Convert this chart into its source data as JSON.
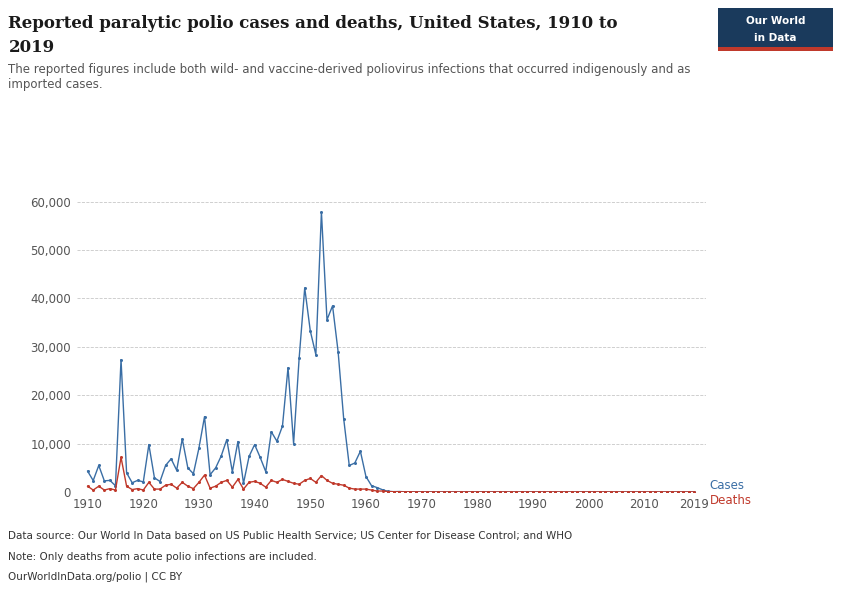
{
  "title_line1": "Reported paralytic polio cases and deaths, United States, 1910 to",
  "title_line2": "2019",
  "subtitle": "The reported figures include both wild- and vaccine-derived poliovirus infections that occurred indigenously and as\nimported cases.",
  "datasource": "Data source: Our World In Data based on US Public Health Service; US Center for Disease Control; and WHO",
  "note": "Note: Only deaths from acute polio infections are included.",
  "license": "OurWorldInData.org/polio | CC BY",
  "cases_label": "Cases",
  "deaths_label": "Deaths",
  "cases_color": "#3A6EA5",
  "deaths_color": "#C0392B",
  "bg_color": "#ffffff",
  "grid_color": "#c8c8c8",
  "owid_box_color": "#1a3a5c",
  "owid_red": "#C0392B",
  "years": [
    1910,
    1911,
    1912,
    1913,
    1914,
    1915,
    1916,
    1917,
    1918,
    1919,
    1920,
    1921,
    1922,
    1923,
    1924,
    1925,
    1926,
    1927,
    1928,
    1929,
    1930,
    1931,
    1932,
    1933,
    1934,
    1935,
    1936,
    1937,
    1938,
    1939,
    1940,
    1941,
    1942,
    1943,
    1944,
    1945,
    1946,
    1947,
    1948,
    1949,
    1950,
    1951,
    1952,
    1953,
    1954,
    1955,
    1956,
    1957,
    1958,
    1959,
    1960,
    1961,
    1962,
    1963,
    1964,
    1965,
    1966,
    1967,
    1968,
    1969,
    1970,
    1971,
    1972,
    1973,
    1974,
    1975,
    1976,
    1977,
    1978,
    1979,
    1980,
    1981,
    1982,
    1983,
    1984,
    1985,
    1986,
    1987,
    1988,
    1989,
    1990,
    1991,
    1992,
    1993,
    1994,
    1995,
    1996,
    1997,
    1998,
    1999,
    2000,
    2001,
    2002,
    2003,
    2004,
    2005,
    2006,
    2007,
    2008,
    2009,
    2010,
    2011,
    2012,
    2013,
    2014,
    2015,
    2016,
    2017,
    2018,
    2019
  ],
  "cases": [
    4305,
    2363,
    5485,
    2305,
    2398,
    1292,
    27363,
    3954,
    1918,
    2406,
    2079,
    9804,
    2932,
    2168,
    5485,
    6858,
    4491,
    10986,
    4979,
    3779,
    9092,
    15575,
    3576,
    4988,
    7451,
    10839,
    4167,
    10428,
    1784,
    7343,
    9804,
    7139,
    4200,
    12449,
    10500,
    13619,
    25698,
    10000,
    27680,
    42173,
    33300,
    28386,
    57879,
    35592,
    38476,
    28985,
    15140,
    5485,
    5987,
    8425,
    3190,
    1312,
    910,
    449,
    122,
    72,
    99,
    41,
    53,
    20,
    33,
    21,
    13,
    9,
    7,
    8,
    9,
    18,
    7,
    26,
    10,
    8,
    8,
    15,
    8,
    8,
    6,
    4,
    8,
    10,
    7,
    5,
    6,
    5,
    4,
    5,
    5,
    5,
    6,
    5,
    5,
    5,
    5,
    5,
    5,
    5,
    5,
    5,
    5,
    5,
    5,
    5,
    5,
    5,
    5,
    5,
    5,
    5,
    5,
    5
  ],
  "deaths": [
    1200,
    400,
    1200,
    400,
    700,
    400,
    7162,
    1200,
    500,
    700,
    400,
    2000,
    600,
    600,
    1400,
    1600,
    800,
    2000,
    1200,
    700,
    2000,
    3500,
    800,
    1200,
    2000,
    2400,
    1000,
    2600,
    600,
    2000,
    2200,
    1800,
    1000,
    2400,
    2000,
    2600,
    2200,
    1800,
    1600,
    2400,
    2800,
    2000,
    3400,
    2400,
    1800,
    1600,
    1400,
    800,
    600,
    600,
    600,
    400,
    200,
    200,
    100,
    50,
    50,
    30,
    30,
    20,
    10,
    10,
    10,
    10,
    10,
    10,
    10,
    10,
    10,
    10,
    10,
    10,
    10,
    10,
    10,
    10,
    10,
    10,
    10,
    10,
    10,
    10,
    10,
    10,
    10,
    10,
    10,
    10,
    10,
    10,
    10,
    10,
    10,
    10,
    10,
    10,
    10,
    10,
    10,
    10,
    10,
    10,
    10,
    10,
    10,
    10,
    10,
    10,
    10,
    10
  ],
  "ylim": [
    0,
    62000
  ],
  "yticks": [
    0,
    10000,
    20000,
    30000,
    40000,
    50000,
    60000
  ],
  "xticks": [
    1910,
    1920,
    1930,
    1940,
    1950,
    1960,
    1970,
    1980,
    1990,
    2000,
    2010,
    2019
  ]
}
